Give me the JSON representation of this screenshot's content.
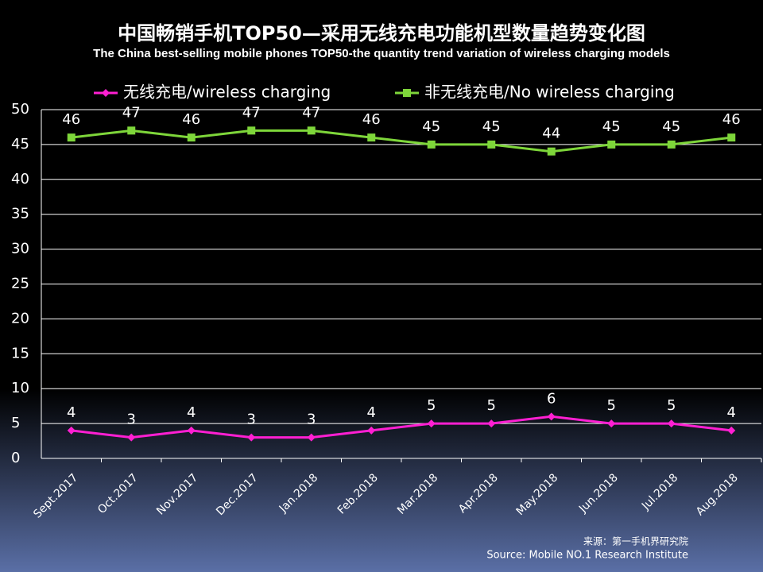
{
  "chart_data": {
    "type": "line",
    "title": "中国畅销手机TOP50—采用无线充电功能机型数量趋势变化图",
    "subtitle": "The China best-selling mobile phones TOP50-the quantity trend variation of wireless charging models",
    "categories": [
      "Sept.2017",
      "Oct.2017",
      "Nov.2017",
      "Dec.2017",
      "Jan.2018",
      "Feb.2018",
      "Mar.2018",
      "Apr.2018",
      "May.2018",
      "Jun.2018",
      "Jul.2018",
      "Aug.2018"
    ],
    "series": [
      {
        "name": "无线充电/wireless charging",
        "color": "#ff1fd2",
        "marker": "diamond",
        "values": [
          4,
          3,
          4,
          3,
          3,
          4,
          5,
          5,
          6,
          5,
          5,
          4
        ]
      },
      {
        "name": "非无线充电/No wireless charging",
        "color": "#7ed63a",
        "marker": "square",
        "values": [
          46,
          47,
          46,
          47,
          47,
          46,
          45,
          45,
          44,
          45,
          45,
          46
        ]
      }
    ],
    "ylim": [
      0,
      50
    ],
    "yticks": [
      0,
      5,
      10,
      15,
      20,
      25,
      30,
      35,
      40,
      45,
      50
    ],
    "grid": true,
    "source": [
      "来源：第一手机界研究院",
      "Source: Mobile NO.1 Research Institute"
    ]
  }
}
